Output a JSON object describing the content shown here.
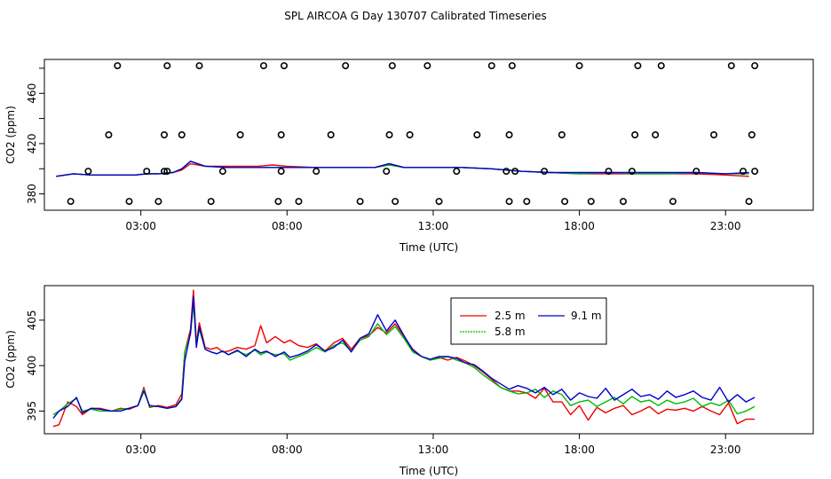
{
  "title": "SPL AIRCOA G  Day 130707  Calibrated Timeseries",
  "colors": {
    "red": "#ee0000",
    "green": "#00bb00",
    "blue": "#0000cc",
    "axis": "#000000",
    "background": "#ffffff"
  },
  "chart_data": [
    {
      "type": "line",
      "title": "SPL AIRCOA G  Day 130707  Calibrated Timeseries",
      "xlabel": "Time (UTC)",
      "ylabel": "CO2 (ppm)",
      "xlim": [
        -0.3,
        26.0
      ],
      "ylim": [
        367,
        487
      ],
      "xticks": [
        3,
        8,
        13,
        18,
        23
      ],
      "xtick_labels": [
        "03:00",
        "08:00",
        "13:00",
        "18:00",
        "23:00"
      ],
      "yticks": [
        380,
        420,
        460
      ],
      "ytick_labels": [
        "380",
        "420",
        "460"
      ],
      "grid": false,
      "series": [
        {
          "name": "2.5 m",
          "color": "red",
          "x": [
            0.1,
            0.7,
            1.3,
            2.0,
            2.8,
            3.2,
            3.6,
            4.1,
            4.4,
            4.7,
            5.2,
            6.0,
            7.0,
            7.5,
            8.0,
            9.0,
            10.0,
            11.0,
            11.5,
            12.0,
            12.5,
            13.0,
            14.0,
            15.0,
            16.0,
            17.0,
            18.0,
            19.0,
            20.0,
            21.0,
            22.0,
            23.0,
            23.8
          ],
          "y": [
            394,
            396,
            395,
            395,
            395,
            396,
            396,
            397,
            399,
            404,
            402,
            402,
            402,
            403,
            402,
            401,
            401,
            401,
            404,
            401,
            401,
            401,
            401,
            400,
            398,
            397,
            396,
            396,
            396,
            396,
            396,
            395,
            394
          ]
        },
        {
          "name": "5.8 m",
          "color": "green",
          "x": [
            0.1,
            0.7,
            1.3,
            2.0,
            2.8,
            3.2,
            3.6,
            4.1,
            4.4,
            4.7,
            5.2,
            6.0,
            7.0,
            7.5,
            8.0,
            9.0,
            10.0,
            11.0,
            11.5,
            12.0,
            12.5,
            13.0,
            14.0,
            15.0,
            16.0,
            17.0,
            18.0,
            19.0,
            20.0,
            21.0,
            22.0,
            23.0,
            23.8
          ],
          "y": [
            394,
            396,
            395,
            395,
            395,
            396,
            396,
            397,
            400,
            406,
            402,
            401,
            401,
            401,
            401,
            401,
            401,
            401,
            403,
            401,
            401,
            401,
            401,
            400,
            398,
            397,
            396,
            397,
            396,
            396,
            397,
            396,
            396
          ]
        },
        {
          "name": "9.1 m",
          "color": "blue",
          "x": [
            0.1,
            0.7,
            1.3,
            2.0,
            2.8,
            3.2,
            3.6,
            4.1,
            4.4,
            4.7,
            5.2,
            6.0,
            7.0,
            7.5,
            8.0,
            9.0,
            10.0,
            11.0,
            11.5,
            12.0,
            12.5,
            13.0,
            14.0,
            15.0,
            16.0,
            17.0,
            18.0,
            19.0,
            20.0,
            21.0,
            22.0,
            23.0,
            23.8
          ],
          "y": [
            394,
            396,
            395,
            395,
            395,
            396,
            396,
            397,
            400,
            406,
            402,
            401,
            401,
            401,
            401,
            401,
            401,
            401,
            404,
            401,
            401,
            401,
            401,
            400,
            398,
            397,
            397,
            397,
            397,
            397,
            397,
            396,
            397
          ]
        },
        {
          "name": "open circles",
          "color": "black",
          "marker": "circle",
          "x": [
            0.6,
            1.2,
            1.9,
            2.2,
            2.6,
            3.2,
            3.6,
            3.8,
            3.8,
            3.9,
            3.9,
            4.4,
            5.0,
            5.4,
            5.8,
            6.4,
            7.2,
            7.7,
            7.8,
            7.8,
            7.9,
            8.4,
            9.0,
            9.5,
            10.0,
            10.5,
            11.4,
            11.5,
            11.6,
            11.7,
            12.2,
            12.8,
            13.2,
            13.8,
            14.5,
            15.0,
            15.5,
            15.6,
            15.6,
            15.7,
            15.8,
            16.2,
            16.8,
            17.4,
            17.5,
            18.0,
            18.4,
            19.0,
            19.5,
            19.8,
            19.9,
            20.0,
            20.6,
            20.8,
            21.2,
            22.0,
            22.6,
            23.2,
            23.6,
            23.8,
            23.9,
            24.0,
            24.0
          ],
          "y": [
            374,
            398,
            427,
            482,
            374,
            398,
            374,
            398,
            427,
            482,
            398,
            427,
            482,
            374,
            398,
            427,
            482,
            374,
            398,
            427,
            482,
            374,
            398,
            427,
            482,
            374,
            398,
            427,
            482,
            374,
            427,
            482,
            374,
            398,
            427,
            482,
            398,
            374,
            427,
            482,
            398,
            374,
            398,
            427,
            374,
            482,
            374,
            398,
            374,
            398,
            427,
            482,
            427,
            482,
            374,
            398,
            427,
            482,
            398,
            374,
            427,
            482,
            398
          ]
        }
      ]
    },
    {
      "type": "line",
      "title": "",
      "xlabel": "Time (UTC)",
      "ylabel": "CO2 (ppm)",
      "xlim": [
        -0.3,
        26.0
      ],
      "ylim": [
        392.5,
        408.8
      ],
      "xticks": [
        3,
        8,
        13,
        18,
        23
      ],
      "xtick_labels": [
        "03:00",
        "08:00",
        "13:00",
        "18:00",
        "23:00"
      ],
      "yticks": [
        395,
        400,
        405
      ],
      "ytick_labels": [
        "395",
        "400",
        "405"
      ],
      "grid": false,
      "legend": {
        "position": "top-center",
        "entries": [
          "2.5 m",
          "5.8 m",
          "9.1 m"
        ]
      },
      "series": [
        {
          "name": "2.5 m",
          "color": "red",
          "x": [
            0.0,
            0.2,
            0.5,
            0.8,
            1.0,
            1.3,
            1.6,
            2.0,
            2.3,
            2.6,
            2.9,
            3.1,
            3.3,
            3.6,
            3.9,
            4.2,
            4.4,
            4.5,
            4.7,
            4.8,
            4.9,
            5.0,
            5.2,
            5.4,
            5.6,
            5.8,
            6.0,
            6.3,
            6.6,
            6.9,
            7.1,
            7.3,
            7.6,
            7.9,
            8.1,
            8.4,
            8.7,
            9.0,
            9.3,
            9.6,
            9.9,
            10.2,
            10.5,
            10.8,
            11.1,
            11.4,
            11.7,
            12.0,
            12.3,
            12.6,
            12.9,
            13.2,
            13.5,
            13.8,
            14.1,
            14.4,
            14.7,
            15.0,
            15.3,
            15.6,
            15.9,
            16.2,
            16.5,
            16.8,
            17.1,
            17.4,
            17.7,
            18.0,
            18.3,
            18.6,
            18.9,
            19.2,
            19.5,
            19.8,
            20.1,
            20.4,
            20.7,
            21.0,
            21.3,
            21.6,
            21.9,
            22.2,
            22.5,
            22.8,
            23.1,
            23.4,
            23.7,
            24.0
          ],
          "y": [
            393.3,
            393.5,
            396.0,
            395.5,
            394.6,
            395.3,
            395.3,
            395.0,
            395.3,
            395.2,
            395.6,
            397.6,
            395.4,
            395.6,
            395.4,
            395.7,
            396.9,
            401.5,
            404.0,
            408.3,
            402.5,
            404.7,
            402.0,
            401.8,
            402.0,
            401.5,
            401.6,
            402.0,
            401.8,
            402.2,
            404.4,
            402.5,
            403.2,
            402.5,
            402.8,
            402.2,
            402.0,
            402.4,
            401.6,
            402.5,
            403.0,
            401.8,
            403.0,
            403.3,
            404.2,
            403.6,
            404.6,
            403.2,
            401.8,
            401.0,
            400.6,
            400.9,
            400.6,
            400.9,
            400.5,
            400.0,
            399.3,
            398.5,
            397.6,
            397.2,
            397.2,
            397.0,
            396.4,
            397.5,
            396.0,
            396.0,
            394.6,
            395.6,
            394.0,
            395.4,
            394.8,
            395.3,
            395.6,
            394.6,
            395.0,
            395.5,
            394.7,
            395.2,
            395.1,
            395.3,
            395.0,
            395.5,
            395.0,
            394.6,
            395.9,
            393.6,
            394.1,
            394.1
          ]
        },
        {
          "name": "5.8 m",
          "color": "green",
          "x": [
            0.0,
            0.2,
            0.5,
            0.8,
            1.0,
            1.3,
            1.6,
            2.0,
            2.3,
            2.6,
            2.9,
            3.1,
            3.3,
            3.6,
            3.9,
            4.2,
            4.4,
            4.5,
            4.7,
            4.8,
            4.9,
            5.0,
            5.2,
            5.4,
            5.6,
            5.8,
            6.0,
            6.3,
            6.6,
            6.9,
            7.1,
            7.3,
            7.6,
            7.9,
            8.1,
            8.4,
            8.7,
            9.0,
            9.3,
            9.6,
            9.9,
            10.2,
            10.5,
            10.8,
            11.1,
            11.4,
            11.7,
            12.0,
            12.3,
            12.6,
            12.9,
            13.2,
            13.5,
            13.8,
            14.1,
            14.4,
            14.7,
            15.0,
            15.3,
            15.6,
            15.9,
            16.2,
            16.5,
            16.8,
            17.1,
            17.4,
            17.7,
            18.0,
            18.3,
            18.6,
            18.9,
            19.2,
            19.5,
            19.8,
            20.1,
            20.4,
            20.7,
            21.0,
            21.3,
            21.6,
            21.9,
            22.2,
            22.5,
            22.8,
            23.1,
            23.4,
            23.7,
            24.0
          ],
          "y": [
            394.6,
            395.0,
            395.8,
            396.4,
            395.0,
            395.2,
            395.0,
            395.0,
            395.2,
            395.3,
            395.6,
            397.4,
            395.5,
            395.5,
            395.3,
            395.5,
            396.4,
            401.5,
            403.5,
            406.8,
            402.5,
            404.0,
            401.8,
            401.5,
            401.3,
            401.6,
            401.2,
            401.6,
            401.2,
            401.7,
            401.2,
            401.5,
            401.2,
            401.3,
            400.6,
            401.0,
            401.4,
            402.0,
            401.5,
            402.2,
            402.5,
            401.6,
            402.8,
            403.2,
            404.6,
            403.4,
            404.3,
            403.0,
            401.5,
            401.0,
            400.6,
            400.8,
            401.0,
            400.6,
            400.3,
            399.8,
            399.0,
            398.3,
            397.6,
            397.2,
            396.9,
            397.0,
            397.4,
            396.5,
            397.2,
            396.8,
            395.6,
            396.0,
            396.2,
            395.5,
            396.0,
            396.5,
            395.8,
            396.6,
            396.0,
            396.2,
            395.6,
            396.2,
            395.8,
            396.0,
            396.4,
            395.5,
            395.9,
            395.6,
            396.2,
            394.7,
            395.0,
            395.5
          ]
        },
        {
          "name": "9.1 m",
          "color": "blue",
          "x": [
            0.0,
            0.2,
            0.5,
            0.8,
            1.0,
            1.3,
            1.6,
            2.0,
            2.3,
            2.6,
            2.9,
            3.1,
            3.3,
            3.6,
            3.9,
            4.2,
            4.4,
            4.5,
            4.7,
            4.8,
            4.9,
            5.0,
            5.2,
            5.4,
            5.6,
            5.8,
            6.0,
            6.3,
            6.6,
            6.9,
            7.1,
            7.3,
            7.6,
            7.9,
            8.1,
            8.4,
            8.7,
            9.0,
            9.3,
            9.6,
            9.9,
            10.2,
            10.5,
            10.8,
            11.1,
            11.4,
            11.7,
            12.0,
            12.3,
            12.6,
            12.9,
            13.2,
            13.5,
            13.8,
            14.1,
            14.4,
            14.7,
            15.0,
            15.3,
            15.6,
            15.9,
            16.2,
            16.5,
            16.8,
            17.1,
            17.4,
            17.7,
            18.0,
            18.3,
            18.6,
            18.9,
            19.2,
            19.5,
            19.8,
            20.1,
            20.4,
            20.7,
            21.0,
            21.3,
            21.6,
            21.9,
            22.2,
            22.5,
            22.8,
            23.1,
            23.4,
            23.7,
            24.0
          ],
          "y": [
            394.2,
            395.0,
            395.5,
            396.5,
            394.8,
            395.3,
            395.2,
            395.0,
            395.0,
            395.3,
            395.6,
            397.2,
            395.6,
            395.5,
            395.3,
            395.5,
            396.3,
            400.5,
            403.6,
            407.6,
            402.0,
            404.3,
            401.8,
            401.5,
            401.3,
            401.6,
            401.2,
            401.7,
            401.0,
            401.8,
            401.4,
            401.6,
            401.0,
            401.5,
            400.9,
            401.2,
            401.6,
            402.3,
            401.6,
            402.0,
            402.8,
            401.5,
            403.0,
            403.5,
            405.6,
            403.8,
            405.0,
            403.3,
            401.7,
            401.0,
            400.7,
            401.0,
            401.0,
            400.8,
            400.3,
            400.1,
            399.4,
            398.6,
            398.0,
            397.4,
            397.8,
            397.5,
            397.0,
            397.6,
            396.8,
            397.4,
            396.2,
            397.0,
            396.6,
            396.4,
            397.5,
            396.2,
            396.8,
            397.4,
            396.6,
            396.8,
            396.3,
            397.2,
            396.5,
            396.8,
            397.2,
            396.5,
            396.2,
            397.6,
            396.0,
            396.8,
            396.0,
            396.5
          ]
        }
      ]
    }
  ]
}
